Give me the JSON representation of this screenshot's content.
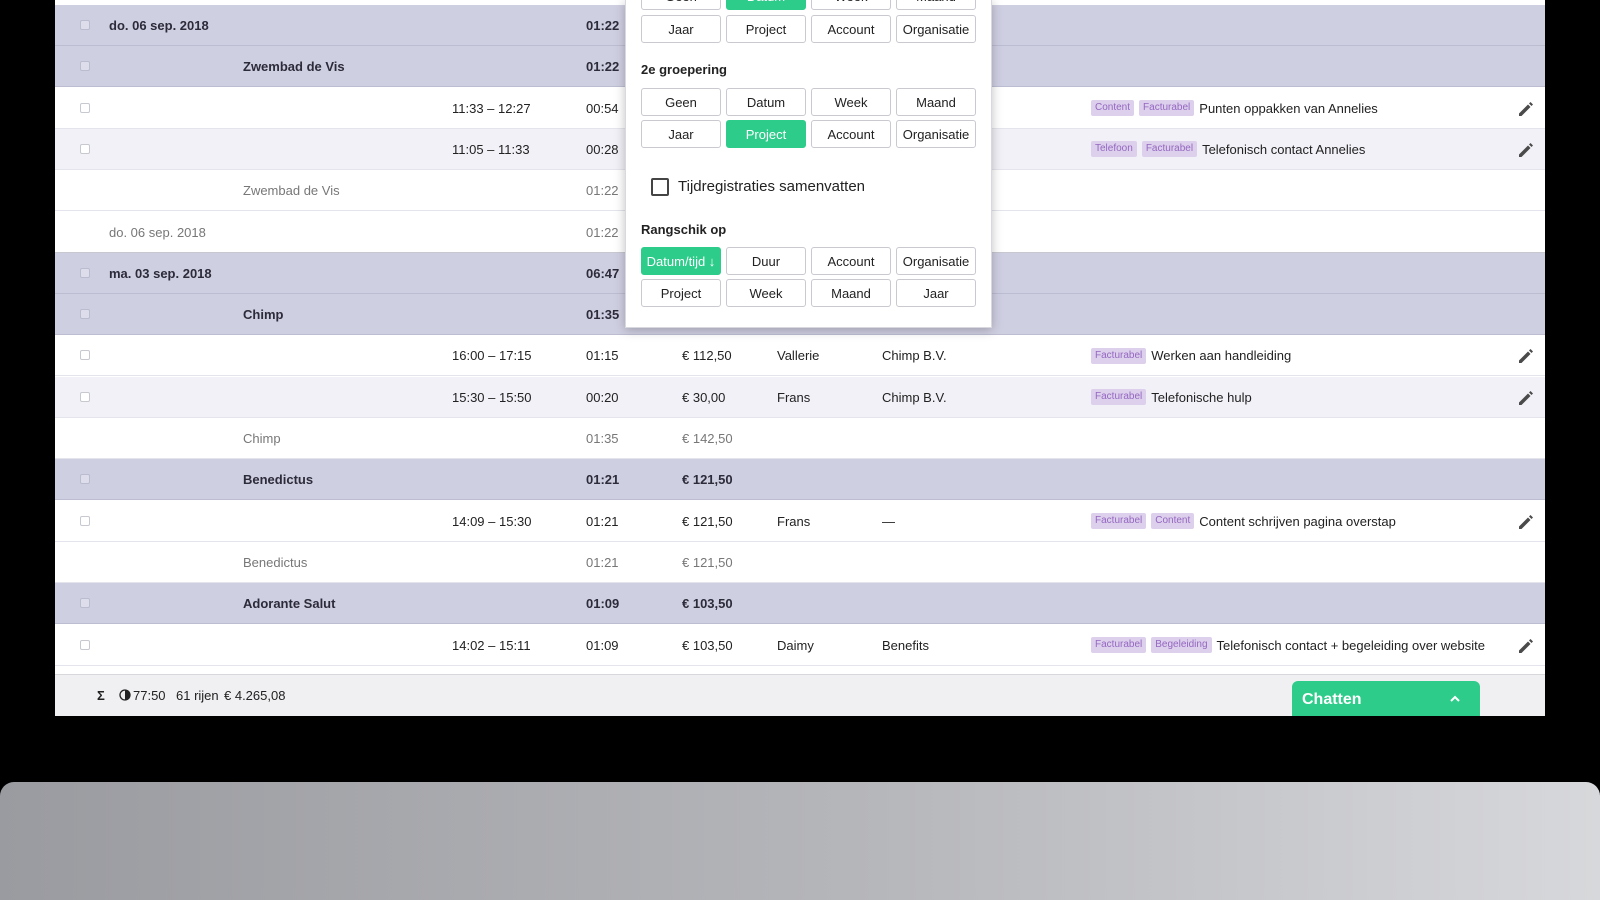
{
  "rows": [
    {
      "type": "group",
      "date": "do. 06 sep. 2018",
      "duration": "01:22"
    },
    {
      "type": "group",
      "project": "Zwembad de Vis",
      "duration": "01:22"
    },
    {
      "type": "entry",
      "time": "11:33 – 12:27",
      "duration": "00:54",
      "tags": [
        "Content",
        "Facturabel"
      ],
      "description": "Punten oppakken van Annelies"
    },
    {
      "type": "entry",
      "time": "11:05 – 11:33",
      "duration": "00:28",
      "tags": [
        "Telefoon",
        "Facturabel"
      ],
      "description": "Telefonisch contact Annelies"
    },
    {
      "type": "sub",
      "project": "Zwembad de Vis",
      "duration": "01:22"
    },
    {
      "type": "sub",
      "date": "do. 06 sep. 2018",
      "duration": "01:22"
    },
    {
      "type": "group",
      "date": "ma. 03 sep. 2018",
      "duration": "06:47"
    },
    {
      "type": "group",
      "project": "Chimp",
      "duration": "01:35"
    },
    {
      "type": "entry",
      "time": "16:00 – 17:15",
      "duration": "01:15",
      "amount": "€ 112,50",
      "user": "Vallerie",
      "account": "Chimp B.V.",
      "tags": [
        "Facturabel"
      ],
      "description": "Werken aan handleiding"
    },
    {
      "type": "entry",
      "time": "15:30 – 15:50",
      "duration": "00:20",
      "amount": "€ 30,00",
      "user": "Frans",
      "account": "Chimp B.V.",
      "tags": [
        "Facturabel"
      ],
      "description": "Telefonische hulp"
    },
    {
      "type": "sub",
      "project": "Chimp",
      "duration": "01:35",
      "amount": "€ 142,50"
    },
    {
      "type": "group",
      "project": "Benedictus",
      "duration": "01:21",
      "amount": "€ 121,50"
    },
    {
      "type": "entry",
      "time": "14:09 – 15:30",
      "duration": "01:21",
      "amount": "€ 121,50",
      "user": "Frans",
      "account": "—",
      "tags": [
        "Facturabel",
        "Content"
      ],
      "description": "Content schrijven pagina overstap"
    },
    {
      "type": "sub",
      "project": "Benedictus",
      "duration": "01:21",
      "amount": "€ 121,50"
    },
    {
      "type": "group",
      "project": "Adorante Salut",
      "duration": "01:09",
      "amount": "€ 103,50"
    },
    {
      "type": "entry",
      "time": "14:02 – 15:11",
      "duration": "01:09",
      "amount": "€ 103,50",
      "user": "Daimy",
      "account": "Benefits",
      "tags": [
        "Facturabel",
        "Begeleiding"
      ],
      "description": "Telefonisch contact + begeleiding over website"
    }
  ],
  "footer": {
    "sigma": "Σ",
    "total_time": "77:50",
    "rows_count": "61 rijen",
    "total_amount": "€ 4.265,08"
  },
  "chat": {
    "label": "Chatten"
  },
  "grouping_panel": {
    "first_row_labels": [
      "Geen",
      "Datum",
      "Week",
      "Maand"
    ],
    "first_row2_labels": [
      "Jaar",
      "Project",
      "Account",
      "Organisatie"
    ],
    "second_grouping_title": "2e groepering",
    "second_row1_labels": [
      "Geen",
      "Datum",
      "Week",
      "Maand"
    ],
    "second_row2_labels": [
      "Jaar",
      "Project",
      "Account",
      "Organisatie"
    ],
    "summarize_label": "Tijdregistraties samenvatten",
    "summarize_checked": false,
    "sort_title": "Rangschik op",
    "sort_row1_labels": [
      "Datum/tijd ↓",
      "Duur",
      "Account",
      "Organisatie"
    ],
    "sort_row2_labels": [
      "Project",
      "Week",
      "Maand",
      "Jaar"
    ]
  },
  "colors": {
    "accent_green": "#2ecc8a",
    "group_row_bg": "#cfcfe2",
    "tag_bg": "#ddd0ec",
    "tag_text": "#9467c0"
  }
}
